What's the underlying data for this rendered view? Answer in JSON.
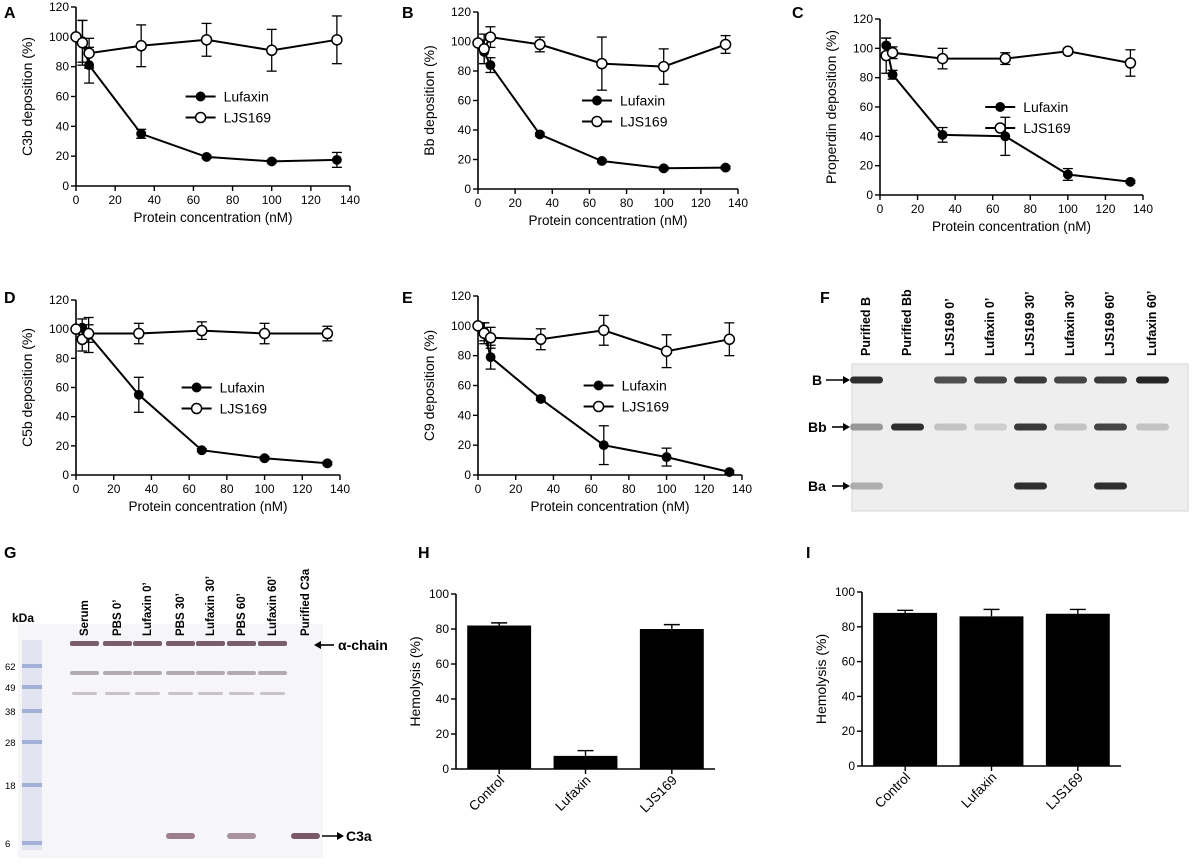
{
  "chart_data": [
    {
      "panel": "A",
      "type": "line",
      "xlabel": "Protein concentration (nM)",
      "ylabel": "C3b deposition (%)",
      "xlim": [
        0,
        140
      ],
      "ylim": [
        0,
        120
      ],
      "xticks": [
        "0",
        "20",
        "40",
        "60",
        "80",
        "100",
        "120",
        "140"
      ],
      "yticks": [
        "0",
        "20",
        "40",
        "60",
        "80",
        "100",
        "120"
      ],
      "legend_position": "center-right",
      "series": [
        {
          "name": "Lufaxin",
          "marker": "filled",
          "x": [
            0,
            3.3,
            6.7,
            33.3,
            66.7,
            100,
            133.3
          ],
          "y": [
            100,
            97,
            81,
            35,
            19.5,
            16.5,
            17.5
          ],
          "err": [
            0,
            14,
            12,
            3,
            1,
            1,
            5
          ]
        },
        {
          "name": "LJS169",
          "marker": "open",
          "x": [
            0,
            3.3,
            6.7,
            33.3,
            66.7,
            100,
            133.3
          ],
          "y": [
            100,
            96,
            89,
            94,
            98,
            91,
            98
          ],
          "err": [
            0,
            15,
            10,
            14,
            11,
            14,
            16
          ]
        }
      ]
    },
    {
      "panel": "B",
      "type": "line",
      "xlabel": "Protein concentration (nM)",
      "ylabel": "Bb deposition (%)",
      "xlim": [
        0,
        140
      ],
      "ylim": [
        0,
        120
      ],
      "xticks": [
        "0",
        "20",
        "40",
        "60",
        "80",
        "100",
        "120",
        "140"
      ],
      "yticks": [
        "0",
        "20",
        "40",
        "60",
        "80",
        "100",
        "120"
      ],
      "legend_position": "center-right",
      "series": [
        {
          "name": "Lufaxin",
          "marker": "filled",
          "x": [
            0,
            3.3,
            6.7,
            33.3,
            66.7,
            100,
            133.3
          ],
          "y": [
            99,
            93,
            84,
            37,
            19,
            14,
            14.5
          ],
          "err": [
            0,
            8,
            5,
            1,
            1,
            1,
            1
          ]
        },
        {
          "name": "LJS169",
          "marker": "open",
          "x": [
            0,
            3.3,
            6.7,
            33.3,
            66.7,
            100,
            133.3
          ],
          "y": [
            99,
            95,
            103,
            98,
            85,
            83,
            98
          ],
          "err": [
            0,
            10,
            7,
            5,
            18,
            12,
            6
          ]
        }
      ]
    },
    {
      "panel": "C",
      "type": "line",
      "xlabel": "Protein concentration (nM)",
      "ylabel": "Properdin deposition (%)",
      "xlim": [
        0,
        140
      ],
      "ylim": [
        0,
        120
      ],
      "xticks": [
        "0",
        "20",
        "40",
        "60",
        "80",
        "100",
        "120",
        "140"
      ],
      "yticks": [
        "0",
        "20",
        "40",
        "60",
        "80",
        "100",
        "120"
      ],
      "legend_position": "center-right",
      "series": [
        {
          "name": "Lufaxin",
          "marker": "filled",
          "x": [
            3.3,
            6.7,
            33.3,
            66.7,
            100,
            133.3
          ],
          "y": [
            102,
            82,
            41,
            40,
            14,
            9
          ],
          "err": [
            5,
            3,
            5,
            13,
            4,
            1
          ]
        },
        {
          "name": "LJS169",
          "marker": "open",
          "x": [
            3.3,
            6.7,
            33.3,
            66.7,
            100,
            133.3
          ],
          "y": [
            95,
            97,
            93,
            93,
            98,
            90
          ],
          "err": [
            12,
            4,
            7,
            4,
            2,
            9
          ]
        }
      ]
    },
    {
      "panel": "D",
      "type": "line",
      "xlabel": "Protein concentration (nM)",
      "ylabel": "C5b deposition (%)",
      "xlim": [
        0,
        140
      ],
      "ylim": [
        0,
        120
      ],
      "xticks": [
        "0",
        "20",
        "40",
        "60",
        "80",
        "100",
        "120",
        "140"
      ],
      "yticks": [
        "0",
        "20",
        "40",
        "60",
        "80",
        "100",
        "120"
      ],
      "legend_position": "center-right",
      "series": [
        {
          "name": "Lufaxin",
          "marker": "filled",
          "x": [
            0,
            3.3,
            6.7,
            33.3,
            66.7,
            100,
            133.3
          ],
          "y": [
            100,
            101,
            96,
            55,
            17,
            11.5,
            8
          ],
          "err": [
            0,
            6,
            12,
            12,
            1,
            1,
            1
          ]
        },
        {
          "name": "LJS169",
          "marker": "open",
          "x": [
            0,
            3.3,
            6.7,
            33.3,
            66.7,
            100,
            133.3
          ],
          "y": [
            100,
            93,
            97,
            97,
            99,
            97,
            97
          ],
          "err": [
            0,
            8,
            6,
            7,
            6,
            7,
            5
          ]
        }
      ]
    },
    {
      "panel": "E",
      "type": "line",
      "xlabel": "Protein concentration (nM)",
      "ylabel": "C9 deposition (%)",
      "xlim": [
        0,
        140
      ],
      "ylim": [
        0,
        120
      ],
      "xticks": [
        "0",
        "20",
        "40",
        "60",
        "80",
        "100",
        "120",
        "140"
      ],
      "yticks": [
        "0",
        "20",
        "40",
        "60",
        "80",
        "100",
        "120"
      ],
      "legend_position": "center-right",
      "series": [
        {
          "name": "Lufaxin",
          "marker": "filled",
          "x": [
            0,
            3.3,
            6.7,
            33.3,
            66.7,
            100,
            133.3
          ],
          "y": [
            100,
            96,
            79,
            51,
            20,
            12,
            2
          ],
          "err": [
            0,
            6,
            8,
            1,
            13,
            6,
            1
          ]
        },
        {
          "name": "LJS169",
          "marker": "open",
          "x": [
            0,
            3.3,
            6.7,
            33.3,
            66.7,
            100,
            133.3
          ],
          "y": [
            100,
            95,
            92,
            91,
            97,
            83,
            91
          ],
          "err": [
            0,
            7,
            7,
            7,
            10,
            11,
            11
          ]
        }
      ]
    },
    {
      "panel": "H",
      "type": "bar",
      "ylabel": "Hemolysis (%)",
      "ylim": [
        0,
        100
      ],
      "yticks": [
        "0",
        "20",
        "40",
        "60",
        "80",
        "100"
      ],
      "categories": [
        "Control",
        "Lufaxin",
        "LJS169"
      ],
      "values": [
        82,
        7.5,
        80
      ],
      "err": [
        1.5,
        3,
        2.5
      ]
    },
    {
      "panel": "I",
      "type": "bar",
      "ylabel": "Hemolysis (%)",
      "ylim": [
        0,
        100
      ],
      "yticks": [
        "0",
        "20",
        "40",
        "60",
        "80",
        "100"
      ],
      "categories": [
        "Control",
        "Lufaxin",
        "LJS169"
      ],
      "values": [
        88,
        86,
        87.5
      ],
      "err": [
        1.5,
        4,
        2.5
      ]
    }
  ],
  "blot_f": {
    "panel": "F",
    "lanes": [
      "Purified B",
      "Purified Bb",
      "LJS169 0’",
      "Lufaxin 0’",
      "LJS169 30’",
      "Lufaxin 30’",
      "LJS169 60’",
      "Lufaxin 60’"
    ],
    "bands": [
      "B",
      "Bb",
      "Ba"
    ],
    "band_intensity": {
      "B": [
        0.9,
        0,
        0.75,
        0.8,
        0.85,
        0.8,
        0.85,
        0.95
      ],
      "Bb": [
        0.4,
        0.9,
        0.2,
        0.15,
        0.85,
        0.2,
        0.8,
        0.2
      ],
      "Ba": [
        0.3,
        0,
        0,
        0,
        0.9,
        0,
        0.9,
        0
      ]
    }
  },
  "blot_g": {
    "panel": "G",
    "kda_label": "kDa",
    "markers": [
      "62",
      "49",
      "38",
      "28",
      "18",
      "6"
    ],
    "lanes": [
      "Serum",
      "PBS 0’",
      "Lufaxin 0’",
      "PBS 30’",
      "Lufaxin 30’",
      "PBS 60’",
      "Lufaxin 60’",
      "Purified C3a"
    ],
    "bands": [
      "α-chain",
      "C3a"
    ],
    "band_intensity": {
      "alpha": [
        0.8,
        0.8,
        0.8,
        0.8,
        0.8,
        0.8,
        0.8,
        0
      ],
      "c3a": [
        0,
        0,
        0,
        0.6,
        0,
        0.5,
        0,
        0.8
      ]
    }
  },
  "arrow_color": "#000000"
}
